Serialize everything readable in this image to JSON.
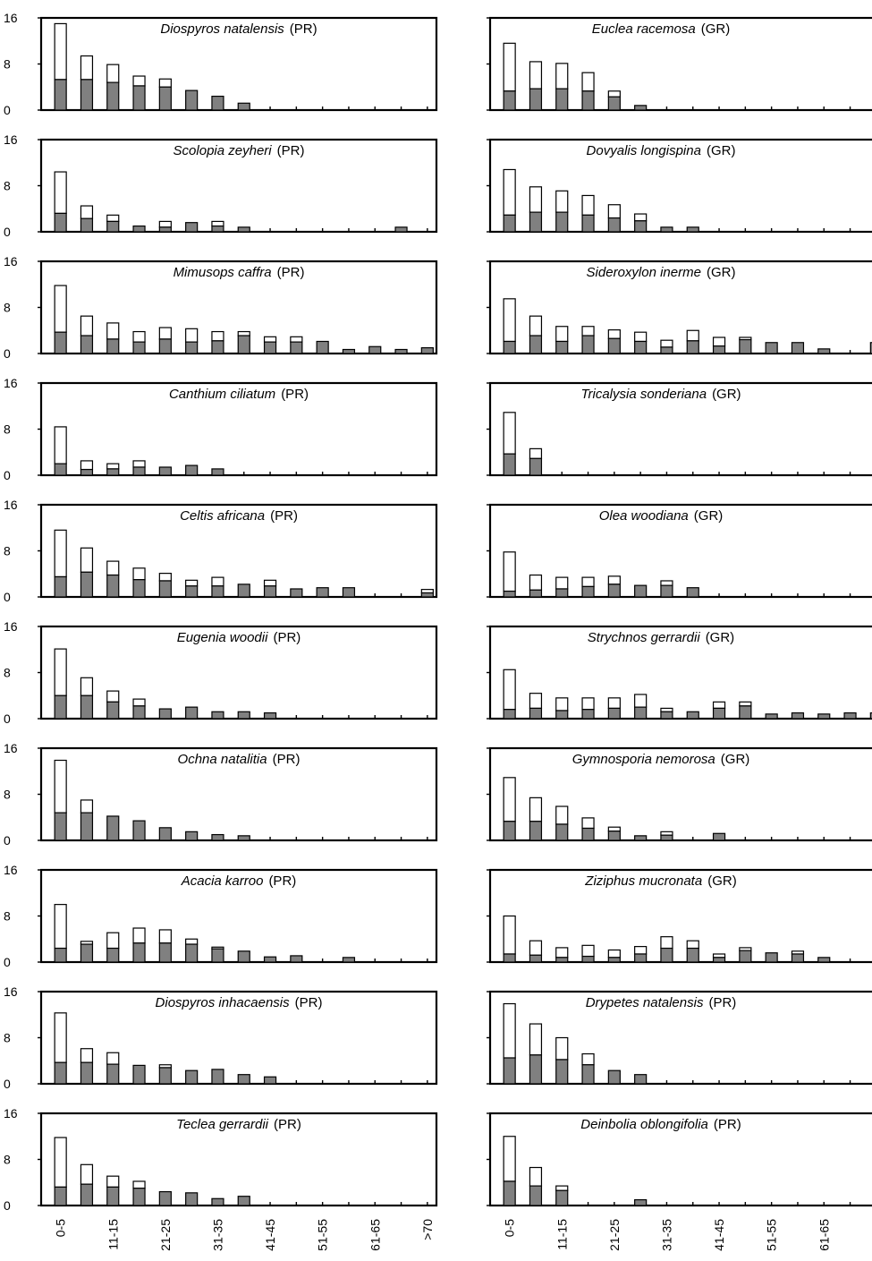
{
  "chart_data": {
    "type": "bar",
    "layout": "two columns of ten stacked bar panels",
    "categories": [
      "0-5",
      "6-10",
      "11-15",
      "16-20",
      "21-25",
      "26-30",
      "31-35",
      "36-40",
      "41-45",
      "46-50",
      "51-55",
      "56-60",
      "61-65",
      "66-70",
      ">70"
    ],
    "category_labels_shown": [
      "0-5",
      "11-15",
      "21-25",
      "31-35",
      "41-45",
      "51-55",
      "61-65",
      ">70"
    ],
    "yticks": [
      0,
      8,
      16
    ],
    "ylim": [
      0,
      16
    ],
    "series_style": {
      "lower": "#808080",
      "upper": "#ffffff"
    },
    "panels": [
      {
        "species": "Diospyros natalensis",
        "code": "(PR)",
        "column": "left",
        "lower": [
          5.3,
          5.3,
          4.8,
          4.2,
          4.0,
          3.4,
          2.4,
          1.2,
          0,
          0,
          0,
          0,
          0,
          0,
          0
        ],
        "total": [
          15,
          9.4,
          7.9,
          5.9,
          5.4,
          3.4,
          2.4,
          1.2,
          0,
          0,
          0,
          0,
          0,
          0,
          0
        ]
      },
      {
        "species": "Scolopia zeyheri",
        "code": "(PR)",
        "column": "left",
        "lower": [
          3.2,
          2.3,
          1.8,
          1.0,
          0.8,
          1.6,
          1.0,
          0.8,
          0,
          0,
          0,
          0,
          0,
          0.8,
          0
        ],
        "total": [
          10.4,
          4.5,
          2.9,
          1.0,
          1.8,
          1.6,
          1.8,
          0.8,
          0,
          0,
          0,
          0,
          0,
          0.8,
          0
        ]
      },
      {
        "species": "Mimusops caffra",
        "code": "(PR)",
        "column": "left",
        "lower": [
          3.7,
          3.1,
          2.5,
          2.0,
          2.5,
          2.0,
          2.2,
          3.1,
          2.0,
          2.0,
          2.1,
          0.7,
          1.2,
          0.7,
          1.0
        ],
        "total": [
          11.8,
          6.5,
          5.3,
          3.8,
          4.5,
          4.3,
          3.8,
          3.8,
          2.9,
          2.9,
          2.1,
          0.7,
          1.2,
          0.7,
          1.0
        ]
      },
      {
        "species": "Canthium ciliatum",
        "code": "(PR)",
        "column": "left",
        "lower": [
          2.0,
          1.0,
          1.1,
          1.4,
          1.4,
          1.7,
          1.1,
          0,
          0,
          0,
          0,
          0,
          0,
          0,
          0
        ],
        "total": [
          8.4,
          2.5,
          2.0,
          2.5,
          1.4,
          1.7,
          1.1,
          0,
          0,
          0,
          0,
          0,
          0,
          0,
          0
        ]
      },
      {
        "species": "Celtis africana",
        "code": "(PR)",
        "column": "left",
        "lower": [
          3.5,
          4.3,
          3.8,
          3.0,
          2.8,
          1.9,
          1.9,
          2.2,
          1.9,
          1.4,
          1.6,
          1.6,
          0,
          0,
          0.7
        ],
        "total": [
          11.6,
          8.5,
          6.2,
          5.0,
          4.1,
          2.9,
          3.4,
          2.2,
          2.9,
          1.4,
          1.6,
          1.6,
          0,
          0,
          1.3
        ]
      },
      {
        "species": "Eugenia woodii",
        "code": "(PR)",
        "column": "left",
        "lower": [
          4.0,
          4.0,
          2.9,
          2.2,
          1.7,
          2.0,
          1.2,
          1.2,
          1.0,
          0,
          0,
          0,
          0,
          0,
          0
        ],
        "total": [
          12.1,
          7.1,
          4.8,
          3.4,
          1.7,
          2.0,
          1.2,
          1.2,
          1.0,
          0,
          0,
          0,
          0,
          0,
          0
        ]
      },
      {
        "species": "Ochna natalitia",
        "code": "(PR)",
        "column": "left",
        "lower": [
          4.8,
          4.8,
          4.2,
          3.4,
          2.2,
          1.5,
          1.0,
          0.8,
          0,
          0,
          0,
          0,
          0,
          0,
          0
        ],
        "total": [
          13.9,
          7.0,
          4.2,
          3.4,
          2.2,
          1.5,
          1.0,
          0.8,
          0,
          0,
          0,
          0,
          0,
          0,
          0
        ]
      },
      {
        "species": "Acacia karroo",
        "code": "(PR)",
        "column": "left",
        "lower": [
          2.4,
          3.1,
          2.4,
          3.3,
          3.3,
          3.1,
          2.3,
          1.9,
          0.9,
          1.1,
          0,
          0.8,
          0,
          0,
          0
        ],
        "total": [
          10.0,
          3.6,
          5.1,
          5.9,
          5.6,
          4.0,
          2.6,
          1.9,
          0.9,
          1.1,
          0,
          0.8,
          0,
          0,
          0
        ]
      },
      {
        "species": "Diospyros inhacaensis",
        "code": "(PR)",
        "column": "left",
        "lower": [
          3.7,
          3.7,
          3.4,
          3.2,
          2.8,
          2.3,
          2.5,
          1.6,
          1.2,
          0,
          0,
          0,
          0,
          0,
          0
        ],
        "total": [
          12.3,
          6.1,
          5.4,
          3.2,
          3.3,
          2.3,
          2.5,
          1.6,
          1.2,
          0,
          0,
          0,
          0,
          0,
          0
        ]
      },
      {
        "species": "Teclea gerrardii",
        "code": "(PR)",
        "column": "left",
        "lower": [
          3.2,
          3.7,
          3.2,
          3.0,
          2.4,
          2.2,
          1.2,
          1.6,
          0,
          0,
          0,
          0,
          0,
          0,
          0
        ],
        "total": [
          11.8,
          7.1,
          5.1,
          4.2,
          2.4,
          2.2,
          1.2,
          1.6,
          0,
          0,
          0,
          0,
          0,
          0,
          0
        ]
      },
      {
        "species": "Euclea racemosa",
        "code": "(GR)",
        "column": "right",
        "lower": [
          3.3,
          3.7,
          3.7,
          3.3,
          2.3,
          0.8,
          0,
          0,
          0,
          0,
          0,
          0,
          0,
          0,
          0
        ],
        "total": [
          11.6,
          8.4,
          8.1,
          6.5,
          3.3,
          0.8,
          0,
          0,
          0,
          0,
          0,
          0,
          0,
          0,
          0
        ]
      },
      {
        "species": "Dovyalis longispina",
        "code": "(GR)",
        "column": "right",
        "lower": [
          2.9,
          3.4,
          3.4,
          2.9,
          2.4,
          1.9,
          0.8,
          0.8,
          0,
          0,
          0,
          0,
          0,
          0,
          0
        ],
        "total": [
          10.8,
          7.8,
          7.1,
          6.3,
          4.7,
          3.1,
          0.8,
          0.8,
          0,
          0,
          0,
          0,
          0,
          0,
          0
        ]
      },
      {
        "species": "Sideroxylon inerme",
        "code": "(GR)",
        "column": "right",
        "lower": [
          2.1,
          3.1,
          2.1,
          3.1,
          2.6,
          2.1,
          1.1,
          2.2,
          1.3,
          2.4,
          1.9,
          1.9,
          0.8,
          0,
          1.9
        ],
        "total": [
          9.5,
          6.5,
          4.7,
          4.7,
          4.1,
          3.7,
          2.3,
          4.0,
          2.8,
          2.8,
          1.9,
          1.9,
          0.8,
          0,
          1.9
        ]
      },
      {
        "species": "Tricalysia sonderiana",
        "code": "(GR)",
        "column": "right",
        "lower": [
          3.7,
          2.9,
          0,
          0,
          0,
          0,
          0,
          0,
          0,
          0,
          0,
          0,
          0,
          0,
          0
        ],
        "total": [
          10.9,
          4.6,
          0,
          0,
          0,
          0,
          0,
          0,
          0,
          0,
          0,
          0,
          0,
          0,
          0
        ]
      },
      {
        "species": "Olea woodiana",
        "code": "(GR)",
        "column": "right",
        "lower": [
          1.0,
          1.2,
          1.4,
          1.8,
          2.2,
          2.0,
          2.0,
          1.6,
          0,
          0,
          0,
          0,
          0,
          0,
          0
        ],
        "total": [
          7.8,
          3.8,
          3.4,
          3.4,
          3.6,
          2.0,
          2.8,
          1.6,
          0,
          0,
          0,
          0,
          0,
          0,
          0
        ]
      },
      {
        "species": "Strychnos gerrardii",
        "code": "(GR)",
        "column": "right",
        "lower": [
          1.6,
          1.8,
          1.4,
          1.6,
          1.8,
          2.0,
          1.2,
          1.2,
          1.8,
          2.2,
          0.8,
          1.0,
          0.8,
          1.0,
          1.0
        ],
        "total": [
          8.5,
          4.4,
          3.6,
          3.6,
          3.6,
          4.2,
          1.8,
          1.2,
          2.9,
          2.9,
          0.8,
          1.0,
          0.8,
          1.0,
          1.0
        ]
      },
      {
        "species": "Gymnosporia nemorosa",
        "code": "(GR)",
        "column": "right",
        "lower": [
          3.3,
          3.3,
          2.8,
          2.1,
          1.6,
          0.8,
          0.9,
          0,
          1.2,
          0,
          0,
          0,
          0,
          0,
          0
        ],
        "total": [
          10.9,
          7.4,
          5.9,
          3.9,
          2.3,
          0.8,
          1.5,
          0,
          1.2,
          0,
          0,
          0,
          0,
          0,
          0
        ]
      },
      {
        "species": "Ziziphus mucronata",
        "code": "(GR)",
        "column": "right",
        "lower": [
          1.4,
          1.2,
          0.8,
          1.0,
          0.8,
          1.4,
          2.4,
          2.4,
          0.8,
          2.0,
          1.6,
          1.4,
          0.8,
          0,
          0
        ],
        "total": [
          8.0,
          3.7,
          2.5,
          2.9,
          2.1,
          2.7,
          4.4,
          3.7,
          1.4,
          2.5,
          1.6,
          1.9,
          0.8,
          0,
          0
        ]
      },
      {
        "species": "Drypetes natalensis",
        "code": "(PR)",
        "column": "right",
        "lower": [
          4.5,
          5.0,
          4.2,
          3.3,
          2.3,
          1.6,
          0,
          0,
          0,
          0,
          0,
          0,
          0,
          0,
          0
        ],
        "total": [
          13.9,
          10.4,
          8.0,
          5.2,
          2.3,
          1.6,
          0,
          0,
          0,
          0,
          0,
          0,
          0,
          0,
          0
        ]
      },
      {
        "species": "Deinbolia oblongifolia",
        "code": "(PR)",
        "column": "right",
        "lower": [
          4.2,
          3.4,
          2.6,
          0,
          0,
          1.0,
          0,
          0,
          0,
          0,
          0,
          0,
          0,
          0,
          0
        ],
        "total": [
          12.0,
          6.6,
          3.4,
          0,
          0,
          1.0,
          0,
          0,
          0,
          0,
          0,
          0,
          0,
          0,
          0
        ]
      }
    ]
  }
}
